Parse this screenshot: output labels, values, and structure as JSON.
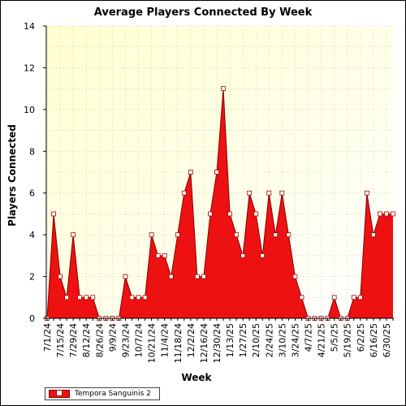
{
  "chart_data": {
    "type": "area",
    "title": "Average Players Connected By Week",
    "xlabel": "Week",
    "ylabel": "Players Connected",
    "ylim": [
      0,
      14
    ],
    "yticks": [
      0,
      2,
      4,
      6,
      8,
      10,
      12,
      14
    ],
    "grid": true,
    "legend_position": "bottom-left",
    "colors": {
      "area": "#ee1111",
      "line": "#880000",
      "marker_fill": "#ffffff",
      "marker_stroke": "#aa0000",
      "background_top": "#ffffd0",
      "background_bottom": "#ffffff"
    },
    "x_tick_labels": [
      "7/1/24",
      "7/15/24",
      "7/29/24",
      "8/12/24",
      "8/26/24",
      "9/9/24",
      "9/23/24",
      "10/7/24",
      "10/21/24",
      "11/4/24",
      "11/18/24",
      "12/2/24",
      "12/16/24",
      "12/30/24",
      "1/13/25",
      "1/27/25",
      "2/10/25",
      "2/24/25",
      "3/10/25",
      "3/24/25",
      "4/7/25",
      "4/21/25",
      "5/5/25",
      "5/19/25",
      "6/2/25",
      "6/16/25",
      "6/30/25"
    ],
    "series": [
      {
        "name": "Tempora Sanguinis 2",
        "x": [
          "7/1/24",
          "7/8/24",
          "7/15/24",
          "7/22/24",
          "7/29/24",
          "8/5/24",
          "8/12/24",
          "8/19/24",
          "8/26/24",
          "9/2/24",
          "9/9/24",
          "9/16/24",
          "9/23/24",
          "9/30/24",
          "10/7/24",
          "10/14/24",
          "10/21/24",
          "10/28/24",
          "11/4/24",
          "11/11/24",
          "11/18/24",
          "11/25/24",
          "12/2/24",
          "12/9/24",
          "12/16/24",
          "12/23/24",
          "12/30/24",
          "1/6/25",
          "1/13/25",
          "1/20/25",
          "1/27/25",
          "2/3/25",
          "2/10/25",
          "2/17/25",
          "2/24/25",
          "3/3/25",
          "3/10/25",
          "3/17/25",
          "3/24/25",
          "3/31/25",
          "4/7/25",
          "4/14/25",
          "4/21/25",
          "4/28/25",
          "5/5/25",
          "5/12/25",
          "5/19/25",
          "5/26/25",
          "6/2/25",
          "6/9/25",
          "6/16/25",
          "6/23/25",
          "6/30/25",
          "7/7/25"
        ],
        "values": [
          0,
          5,
          2,
          1,
          4,
          1,
          1,
          1,
          0,
          0,
          0,
          0,
          2,
          1,
          1,
          1,
          4,
          3,
          3,
          2,
          4,
          6,
          7,
          2,
          2,
          5,
          7,
          11,
          5,
          4,
          3,
          6,
          5,
          3,
          6,
          4,
          6,
          4,
          2,
          1,
          0,
          0,
          0,
          0,
          1,
          0,
          0,
          1,
          1,
          6,
          4,
          5,
          5,
          5
        ]
      }
    ]
  }
}
